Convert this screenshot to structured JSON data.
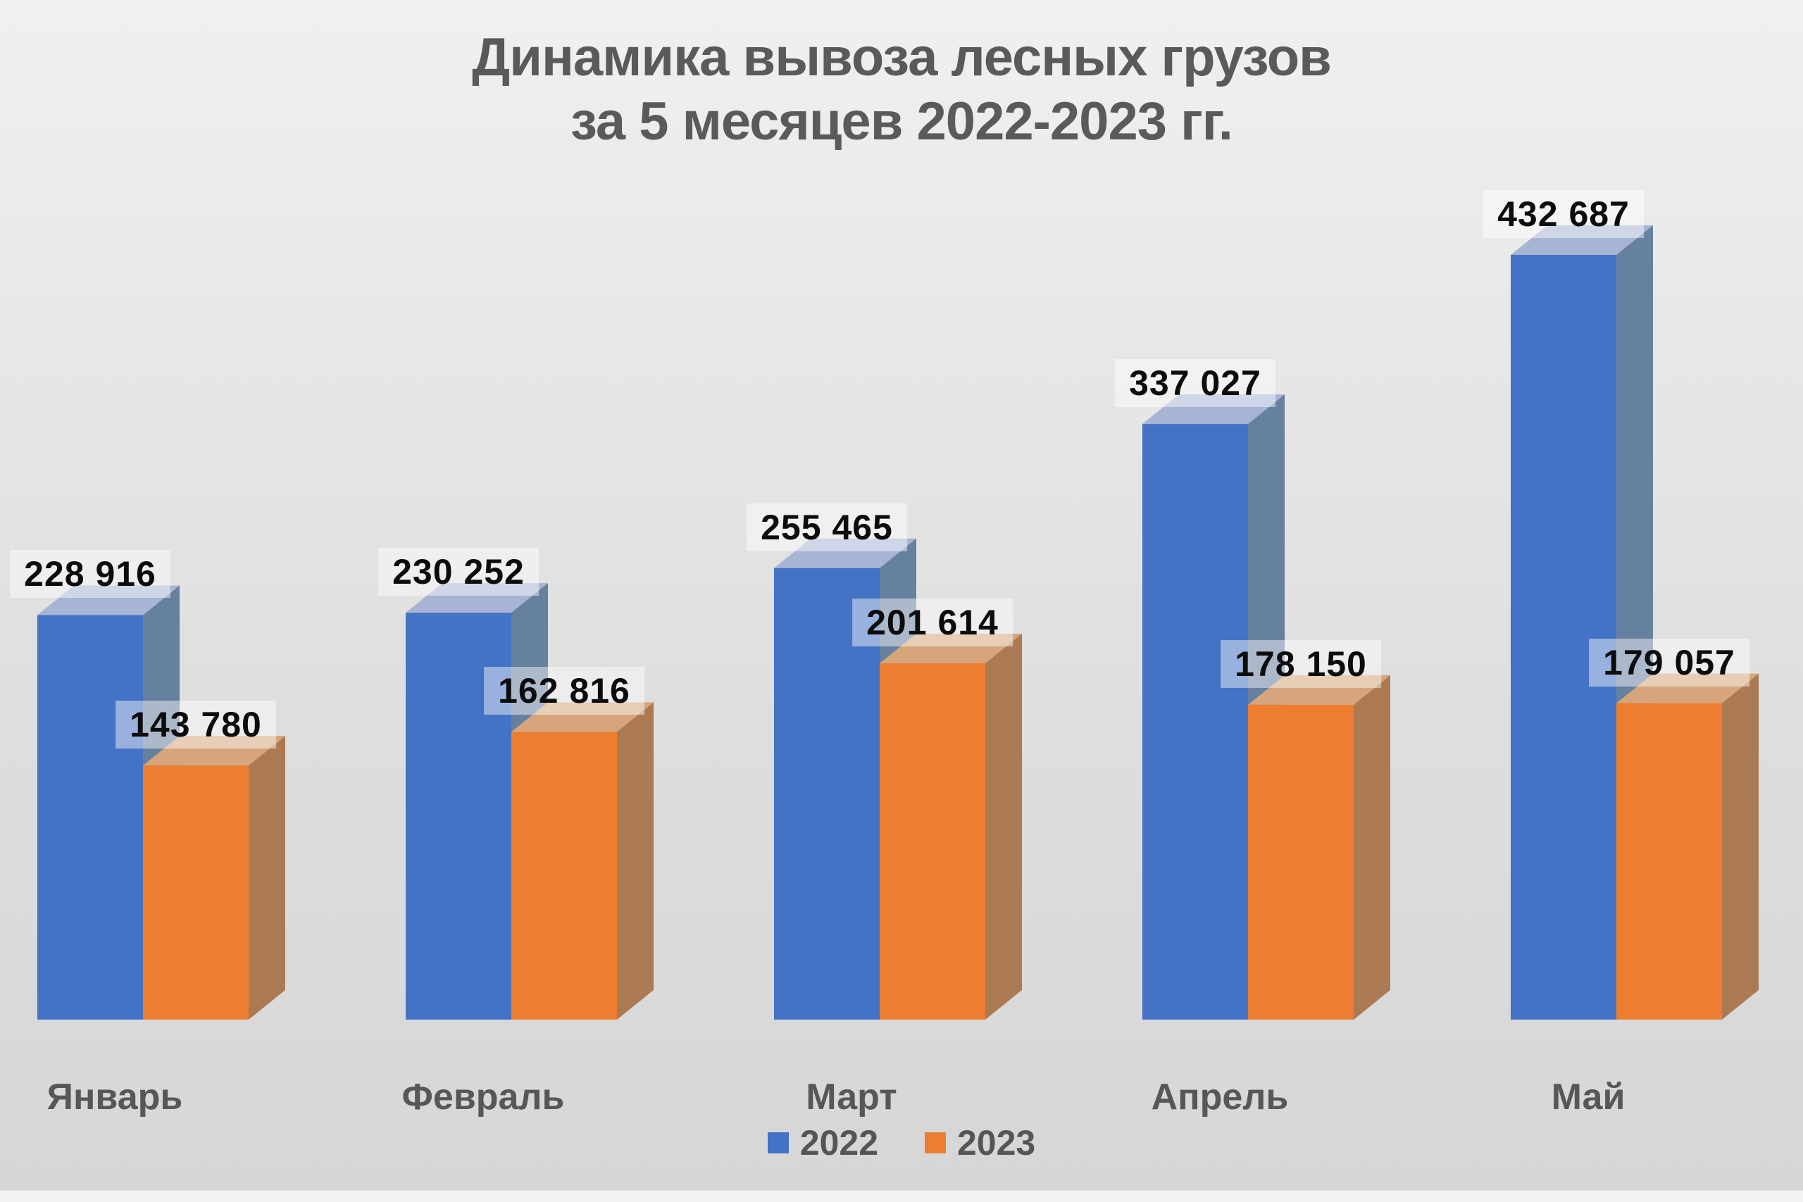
{
  "chart_data": {
    "type": "bar",
    "style": "3d-clustered-column",
    "title": "Динамика вывоза лесных грузов за 5 месяцев 2022-2023 гг.",
    "title_lines": [
      "Динамика вывоза лесных грузов",
      "за 5 месяцев 2022-2023 гг."
    ],
    "categories": [
      "Январь",
      "Февраль",
      "Март",
      "Апрель",
      "Май"
    ],
    "series": [
      {
        "name": "2022",
        "color": "#4472C4",
        "values": [
          228916,
          230252,
          255465,
          337027,
          432687
        ]
      },
      {
        "name": "2023",
        "color": "#ED7D31",
        "values": [
          143780,
          162816,
          201614,
          178150,
          179057
        ]
      }
    ],
    "value_labels_visible": true,
    "value_label_format": "thousands separated by space",
    "legend_position": "bottom",
    "axes_visible": false,
    "gridlines": false
  },
  "colors": {
    "background_top": "#f0f0f0",
    "background_bottom": "#d6d6d6",
    "title_text": "#5a5a5a",
    "category_text": "#575757",
    "legend_text": "#555555",
    "value_text": "#0c0c0c",
    "value_label_bg": "rgba(255,255,255,0.45)",
    "series_2022": {
      "front": "#4472C4",
      "side": "#66809F",
      "top": "#A7B4D3"
    },
    "series_2023": {
      "front": "#ED7D31",
      "side": "#AC7A52",
      "top": "#D6A57C"
    }
  }
}
